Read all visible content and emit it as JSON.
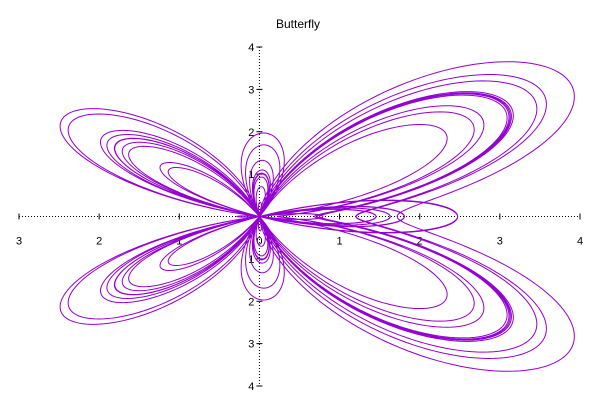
{
  "chart_data": {
    "type": "line",
    "title": "Butterfly",
    "xlabel": "",
    "ylabel": "",
    "xlim": [
      -3,
      4
    ],
    "ylim": [
      -4,
      4
    ],
    "grid": false,
    "legend": "none",
    "x_ticks": [
      {
        "value": -3,
        "label": "3"
      },
      {
        "value": -2,
        "label": "2"
      },
      {
        "value": -1,
        "label": "1"
      },
      {
        "value": 0,
        "label": "0"
      },
      {
        "value": 1,
        "label": "1"
      },
      {
        "value": 2,
        "label": "2"
      },
      {
        "value": 3,
        "label": "3"
      },
      {
        "value": 4,
        "label": "4"
      }
    ],
    "y_ticks": [
      {
        "value": 4,
        "label": "4"
      },
      {
        "value": 3,
        "label": "3"
      },
      {
        "value": 2,
        "label": "2"
      },
      {
        "value": 1,
        "label": "1"
      },
      {
        "value": 0,
        "label": "0"
      },
      {
        "value": -1,
        "label": "1"
      },
      {
        "value": -2,
        "label": "2"
      },
      {
        "value": -3,
        "label": "3"
      },
      {
        "value": -4,
        "label": "4"
      }
    ],
    "series": [
      {
        "curve": "polar butterfly: r = e^cos(t) - 2cos(4t) + sin(t/12)^5, plotted as x = r·cos(t), y = r·sin(t)",
        "t_range": [
          0,
          75.4
        ],
        "color": "#9400d3"
      }
    ]
  }
}
